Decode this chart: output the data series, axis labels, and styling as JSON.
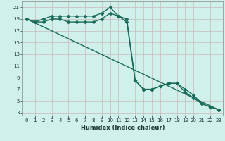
{
  "xlabel": "Humidex (Indice chaleur)",
  "bg_color": "#cff0eb",
  "grid_color": "#dce8e6",
  "line_color": "#1a6b5a",
  "xlim": [
    -0.5,
    23.5
  ],
  "ylim": [
    2.5,
    22
  ],
  "xticks": [
    0,
    1,
    2,
    3,
    4,
    5,
    6,
    7,
    8,
    9,
    10,
    11,
    12,
    13,
    14,
    15,
    16,
    17,
    18,
    19,
    20,
    21,
    22,
    23
  ],
  "yticks": [
    3,
    5,
    7,
    9,
    11,
    13,
    15,
    17,
    19,
    21
  ],
  "line1_x": [
    0,
    1,
    2,
    3,
    4,
    5,
    6,
    7,
    8,
    9,
    10,
    11,
    12,
    13,
    14,
    15,
    16,
    17,
    18,
    19,
    20,
    21,
    22,
    23
  ],
  "line1_y": [
    19,
    18.5,
    19,
    19.5,
    19.5,
    19.5,
    19.5,
    19.5,
    19.5,
    20,
    21,
    19.5,
    19,
    8.5,
    7,
    7,
    7.5,
    8,
    8,
    7,
    6,
    4.5,
    4,
    3.5
  ],
  "line2_x": [
    0,
    1,
    2,
    3,
    4,
    5,
    6,
    7,
    8,
    9,
    10,
    11,
    12,
    13,
    14,
    15,
    16,
    17,
    18,
    19,
    20,
    21,
    22,
    23
  ],
  "line2_y": [
    19,
    18.5,
    18.5,
    19,
    19,
    18.5,
    18.5,
    18.5,
    18.5,
    19,
    20,
    19.5,
    18.5,
    8.5,
    7,
    7,
    7.5,
    8,
    8,
    6.5,
    5.5,
    4.5,
    4,
    3.5
  ],
  "line3_x": [
    0,
    23
  ],
  "line3_y": [
    19,
    3.5
  ],
  "marker": "D",
  "markersize": 2.5,
  "linewidth": 1.0
}
